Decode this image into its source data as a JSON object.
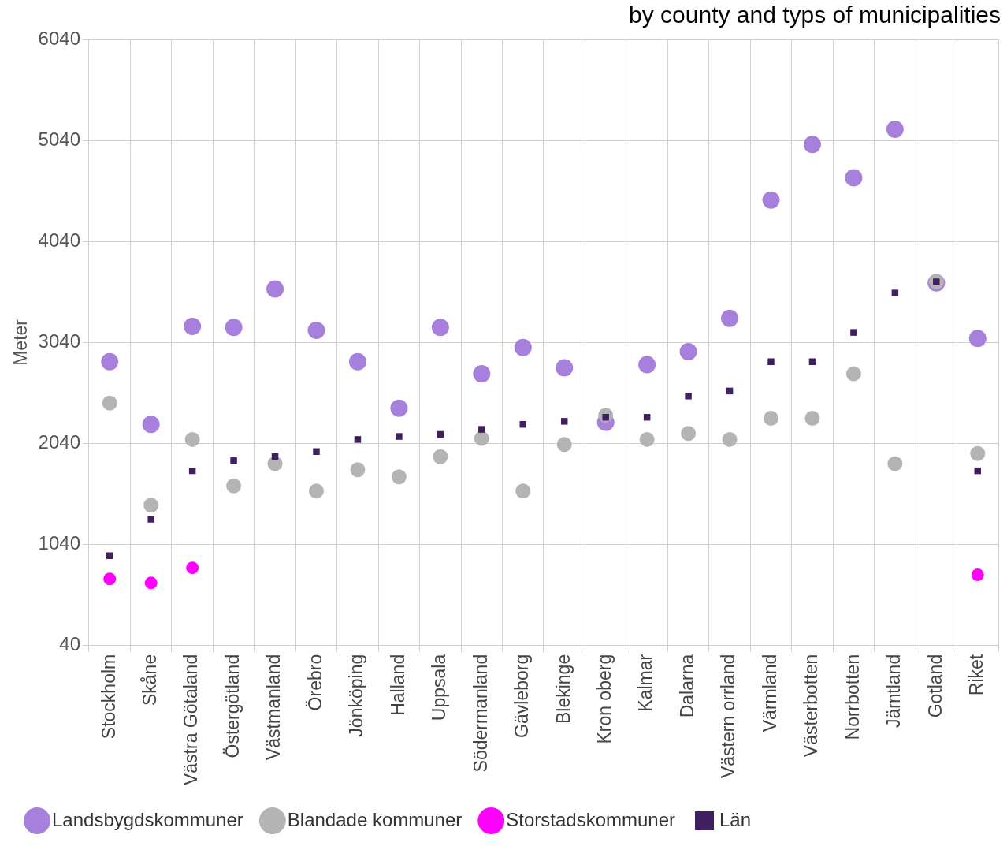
{
  "chart_data": {
    "type": "scatter",
    "title": "by county and typs of municipalities",
    "ylabel": "Meter",
    "categories": [
      "Stockholm",
      "Skåne",
      "Västra Götaland",
      "Östergötland",
      "Västmanland",
      "Örebro",
      "Jönköping",
      "Halland",
      "Uppsala",
      "Södermanland",
      "Gävleborg",
      "Blekinge",
      "Kron oberg",
      "Kalmar",
      "Dalarna",
      "Västern orrland",
      "Värmland",
      "Västerbotten",
      "Norrbotten",
      "Jämtland",
      "Gotland",
      "Riket"
    ],
    "series": [
      {
        "name": "Landsbygdskommuner",
        "color": "#a77fdc",
        "marker": "circle",
        "values": [
          2850,
          2230,
          3200,
          3190,
          3570,
          3160,
          2850,
          2390,
          3190,
          2730,
          2990,
          2790,
          2250,
          2820,
          2950,
          3280,
          4450,
          5000,
          4670,
          5150,
          3630,
          3080
        ]
      },
      {
        "name": "Blandade kommuner",
        "color": "#b4b4b4",
        "marker": "circle",
        "values": [
          2440,
          1430,
          2080,
          1620,
          1840,
          1570,
          1780,
          1710,
          1910,
          2090,
          1570,
          2030,
          2320,
          2080,
          2140,
          2080,
          2290,
          2290,
          2730,
          1840,
          3640,
          1940
        ]
      },
      {
        "name": "Storstadskommuner",
        "color": "#ff00ff",
        "marker": "circle",
        "values": [
          700,
          660,
          810,
          null,
          null,
          null,
          null,
          null,
          null,
          null,
          null,
          null,
          null,
          null,
          null,
          null,
          null,
          null,
          null,
          null,
          null,
          740
        ]
      },
      {
        "name": "Län",
        "color": "#3f1f5f",
        "marker": "square",
        "values": [
          930,
          1290,
          1770,
          1870,
          1910,
          1960,
          2080,
          2110,
          2130,
          2180,
          2230,
          2260,
          2300,
          2300,
          2510,
          2560,
          2850,
          2850,
          3140,
          3530,
          3640,
          1770
        ]
      }
    ],
    "ylim": [
      40,
      6040
    ],
    "yticks": [
      40,
      1040,
      2040,
      3040,
      4040,
      5040,
      6040
    ],
    "grid": true,
    "legend": "bottom"
  }
}
